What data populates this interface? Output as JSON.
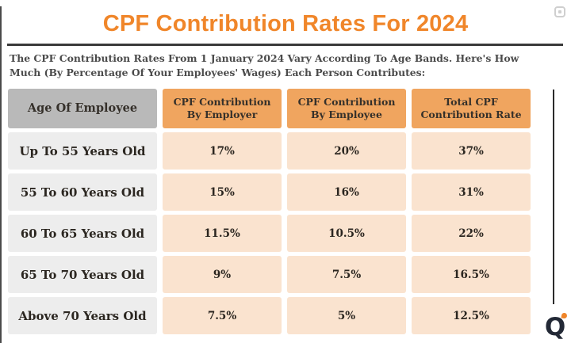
{
  "header": {
    "title": "CPF Contribution Rates For 2024",
    "subtitle": "The CPF Contribution Rates From 1 January 2024 Vary According To Age Bands. Here's How Much (By Percentage Of Your Employees' Wages) Each Person Contributes:"
  },
  "table": {
    "columns": [
      "Age Of Employee",
      "CPF Contribution By Employer",
      "CPF Contribution By Employee",
      "Total CPF Contribution Rate"
    ],
    "rows": [
      [
        "Up To 55 Years Old",
        "17%",
        "20%",
        "37%"
      ],
      [
        "55 To 60 Years Old",
        "15%",
        "16%",
        "31%"
      ],
      [
        "60 To 65 Years Old",
        "11.5%",
        "10.5%",
        "22%"
      ],
      [
        "65 To 70 Years Old",
        "9%",
        "7.5%",
        "16.5%"
      ],
      [
        "Above 70 Years Old",
        "7.5%",
        "5%",
        "12.5%"
      ]
    ]
  },
  "branding": {
    "logo_letter": "Q"
  },
  "icons": {
    "top_right": "watermark-badge-icon"
  },
  "colors": {
    "title_orange": "#f0862a",
    "header_orange": "#f0a55f",
    "value_peach": "#fae3cf",
    "header_gray": "#b9b9b9",
    "age_cell_gray": "#ededed",
    "divider_dark": "#3a3a3a",
    "subtitle_text": "#4b4b4b",
    "table_text": "#2b2620"
  },
  "chart_data": {
    "type": "table",
    "title": "CPF Contribution Rates For 2024",
    "categories": [
      "Up To 55 Years Old",
      "55 To 60 Years Old",
      "60 To 65 Years Old",
      "65 To 70 Years Old",
      "Above 70 Years Old"
    ],
    "series": [
      {
        "name": "CPF Contribution By Employer",
        "unit": "%",
        "values": [
          17,
          15,
          11.5,
          9,
          7.5
        ]
      },
      {
        "name": "CPF Contribution By Employee",
        "unit": "%",
        "values": [
          20,
          16,
          10.5,
          7.5,
          5
        ]
      },
      {
        "name": "Total CPF Contribution Rate",
        "unit": "%",
        "values": [
          37,
          31,
          22,
          16.5,
          12.5
        ]
      }
    ]
  }
}
